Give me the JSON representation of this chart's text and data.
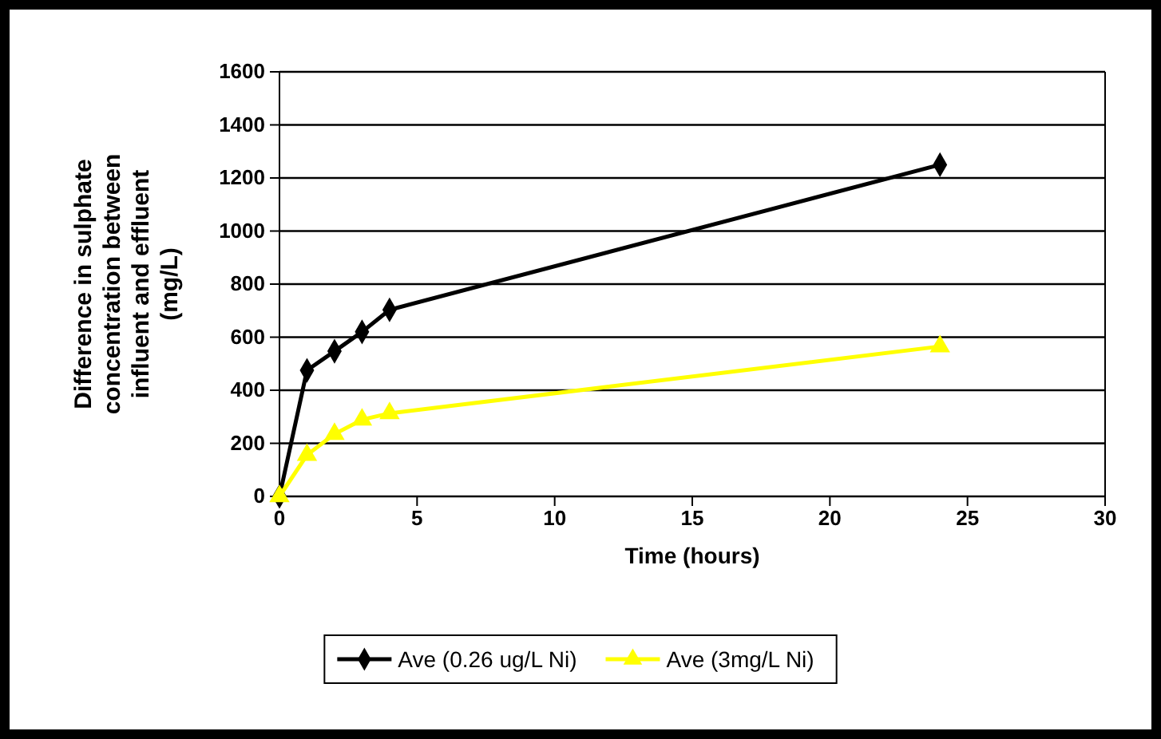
{
  "chart_data": {
    "type": "line",
    "xlabel": "Time (hours)",
    "ylabel": "Difference in sulphate concentration between influent and effluent (mg/L)",
    "x": [
      0,
      1,
      2,
      3,
      4,
      24
    ],
    "series": [
      {
        "name": "Ave (0.26 ug/L Ni)",
        "color": "#000000",
        "marker": "diamond",
        "values": [
          0,
          475,
          547,
          620,
          703,
          1250
        ]
      },
      {
        "name": "Ave (3mg/L Ni)",
        "color": "#ffff00",
        "marker": "triangle",
        "values": [
          0,
          156,
          235,
          289,
          313,
          565
        ]
      }
    ],
    "xlim": [
      0,
      30
    ],
    "xticks": [
      0,
      5,
      10,
      15,
      20,
      25,
      30
    ],
    "ylim": [
      0,
      1600
    ],
    "yticks": [
      0,
      200,
      400,
      600,
      800,
      1000,
      1200,
      1400,
      1600
    ],
    "grid": "y",
    "legend": "bottom",
    "line_style": "solid"
  }
}
